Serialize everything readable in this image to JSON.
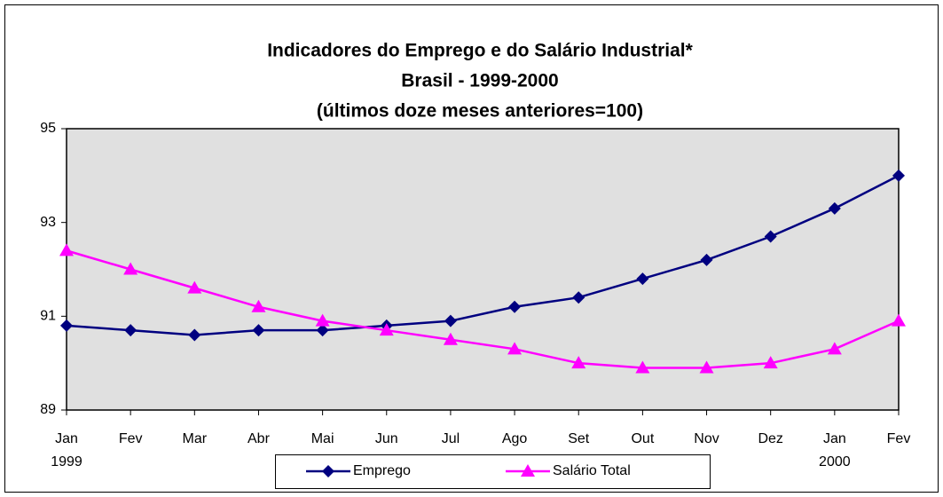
{
  "chart_data": {
    "type": "line",
    "title": [
      "Indicadores do Emprego e do Salário Industrial*",
      "Brasil - 1999-2000",
      "(últimos doze meses anteriores=100)"
    ],
    "categories": [
      "Jan",
      "Fev",
      "Mar",
      "Abr",
      "Mai",
      "Jun",
      "Jul",
      "Ago",
      "Set",
      "Out",
      "Nov",
      "Dez",
      "Jan",
      "Fev"
    ],
    "category_years": [
      "1999",
      null,
      null,
      null,
      null,
      null,
      null,
      null,
      null,
      null,
      null,
      null,
      "2000",
      null
    ],
    "series": [
      {
        "name": "Emprego",
        "color": "#000080",
        "marker": "diamond",
        "values": [
          90.8,
          90.7,
          90.6,
          90.7,
          90.7,
          90.8,
          90.9,
          91.2,
          91.4,
          91.8,
          92.2,
          92.7,
          93.3,
          94.0
        ]
      },
      {
        "name": "Salário Total",
        "color": "#ff00ff",
        "marker": "triangle",
        "values": [
          92.4,
          92.0,
          91.6,
          91.2,
          90.9,
          90.7,
          90.5,
          90.3,
          90.0,
          89.9,
          89.9,
          90.0,
          90.3,
          90.9
        ]
      }
    ],
    "ylim": [
      89,
      95
    ],
    "yticks": [
      89,
      91,
      93,
      95
    ],
    "grid": false,
    "legend": "bottom"
  }
}
